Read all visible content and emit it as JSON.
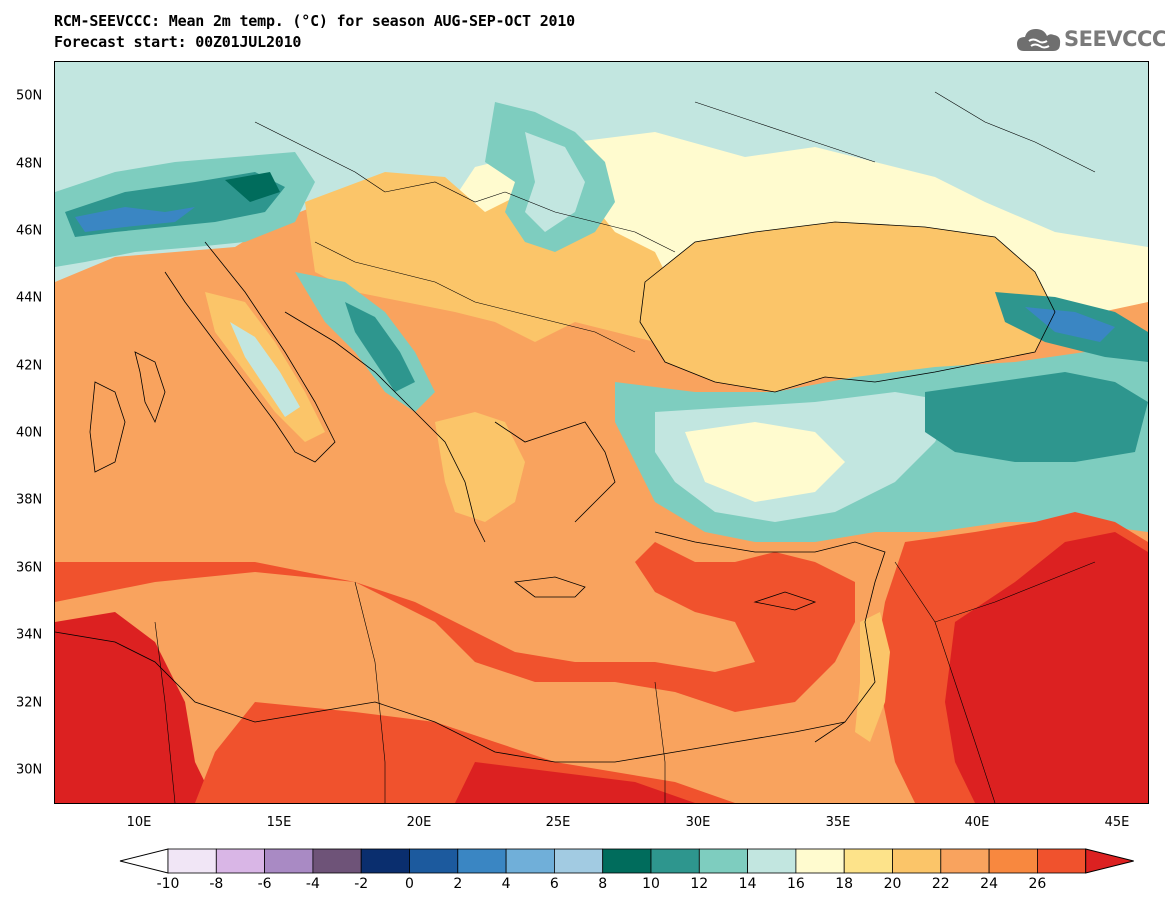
{
  "header": {
    "title_line1": "RCM-SEEVCCC: Mean 2m temp. (°C) for season AUG-SEP-OCT 2010",
    "title_line2": "Forecast start: 00Z01JUL2010",
    "logo_text": "SEEVCCC"
  },
  "map": {
    "lat_labels": [
      "50N",
      "48N",
      "46N",
      "44N",
      "42N",
      "40N",
      "38N",
      "36N",
      "34N",
      "32N",
      "30N"
    ],
    "lon_labels": [
      "10E",
      "15E",
      "20E",
      "25E",
      "30E",
      "35E",
      "40E",
      "45E"
    ],
    "lat_values": [
      50,
      48,
      46,
      44,
      42,
      40,
      38,
      36,
      34,
      32,
      30
    ],
    "lon_values": [
      10,
      15,
      20,
      25,
      30,
      35,
      40,
      45
    ],
    "lat_range": [
      29,
      51
    ],
    "lon_range": [
      6,
      45.5
    ]
  },
  "colorbar": {
    "labels": [
      "-10",
      "-8",
      "-6",
      "-4",
      "-2",
      "0",
      "2",
      "4",
      "6",
      "8",
      "10",
      "12",
      "14",
      "16",
      "18",
      "20",
      "22",
      "24",
      "26"
    ],
    "colors": [
      "#f1e6f6",
      "#d9b6e6",
      "#a98ac4",
      "#6e5378",
      "#0a2e6e",
      "#1c5a9e",
      "#3a86c3",
      "#70afd9",
      "#a2cbe2",
      "#006c5c",
      "#2e968e",
      "#7ecdbf",
      "#c2e6e0",
      "#fffbcf",
      "#fde38a",
      "#fbc569",
      "#f9a35e",
      "#f8883f",
      "#f0522d",
      "#dc2121"
    ],
    "under_color": "#ffffff",
    "over_color": "#dc2121"
  }
}
